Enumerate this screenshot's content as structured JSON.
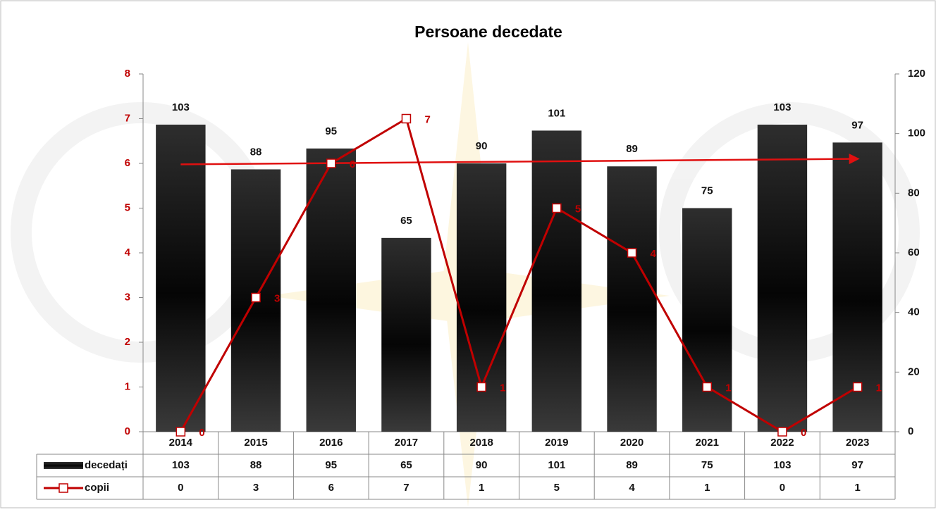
{
  "chart_data": {
    "type": "bar",
    "title": "Persoane decedate",
    "categories": [
      "2014",
      "2015",
      "2016",
      "2017",
      "2018",
      "2019",
      "2020",
      "2021",
      "2022",
      "2023"
    ],
    "series": [
      {
        "name": "decedați",
        "type": "bar",
        "axis": "y2",
        "color": "#1a1a1a",
        "values": [
          103,
          88,
          95,
          65,
          90,
          101,
          89,
          75,
          103,
          97
        ]
      },
      {
        "name": "copii",
        "type": "line",
        "color": "#c00000",
        "values": [
          0,
          3,
          6,
          7,
          1,
          5,
          4,
          1,
          0,
          1
        ]
      }
    ],
    "ylim": [
      0,
      8
    ],
    "yticks": [
      0,
      1,
      2,
      3,
      4,
      5,
      6,
      7,
      8
    ],
    "y2lim": [
      0,
      120
    ],
    "y2ticks": [
      0,
      20,
      40,
      60,
      80,
      100,
      120
    ],
    "data_table": true,
    "data_labels": true,
    "trendline": true
  }
}
